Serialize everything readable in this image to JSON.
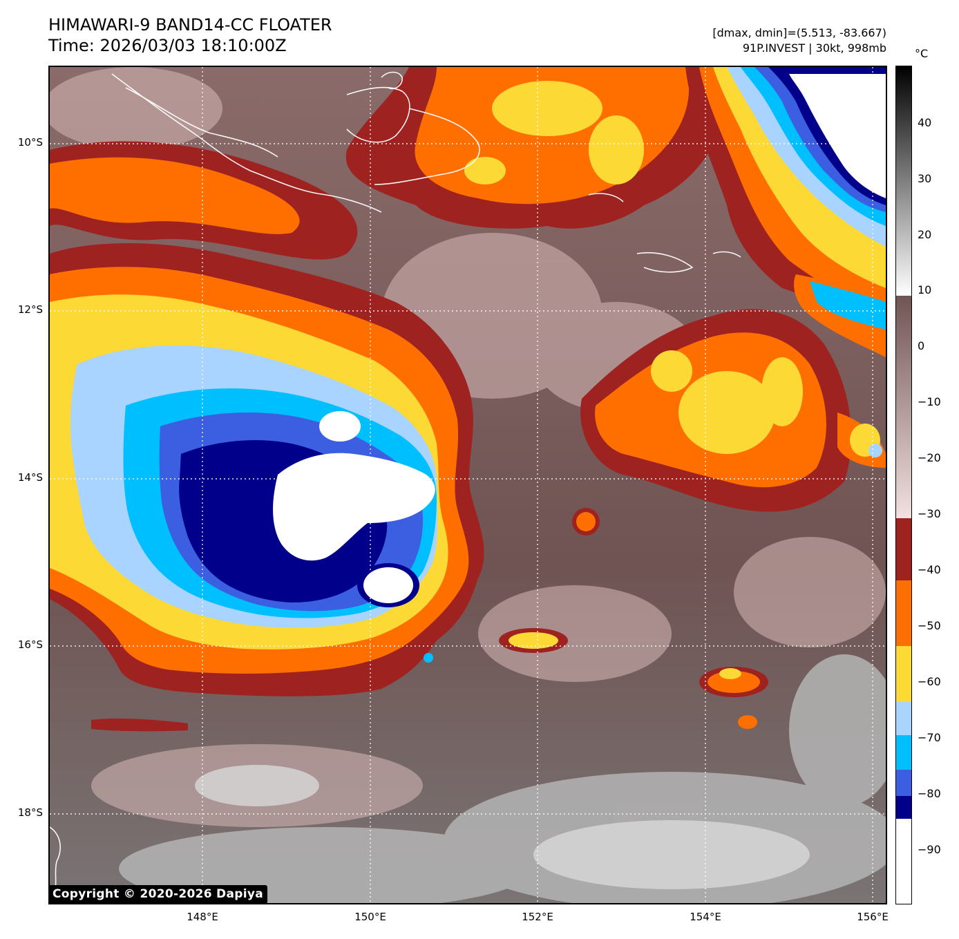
{
  "header": {
    "title_line1": "HIMAWARI-9 BAND14-CC FLOATER",
    "title_line2": "Time: 2026/03/03 18:10:00Z",
    "meta_line1": "[dmax, dmin]=(5.513, -83.667)",
    "meta_line2": "91P.INVEST | 30kt, 998mb"
  },
  "map": {
    "lat_labels": [
      "10°S",
      "12°S",
      "14°S",
      "16°S",
      "18°S"
    ],
    "lon_labels": [
      "148°E",
      "150°E",
      "152°E",
      "154°E",
      "156°E"
    ],
    "copyright": "Copyright © 2020-2026 Dapiya"
  },
  "colorbar": {
    "unit": "°C",
    "ticks": [
      "40",
      "30",
      "20",
      "10",
      "0",
      "−10",
      "−20",
      "−30",
      "−40",
      "−50",
      "−60",
      "−70",
      "−80",
      "−90"
    ]
  },
  "colors": {
    "white_cold": "#ffffff",
    "dark_blue": "#00008b",
    "royal_blue": "#3b5fe0",
    "deep_sky_blue": "#00bfff",
    "light_blue": "#a8d4ff",
    "yellow": "#fcd934",
    "orange": "#ff6f00",
    "dark_red": "#9e2320",
    "warm_brown": "#6f5453",
    "pink_brown": "#e8cfcd",
    "gray_land": "#9a9a9a"
  }
}
